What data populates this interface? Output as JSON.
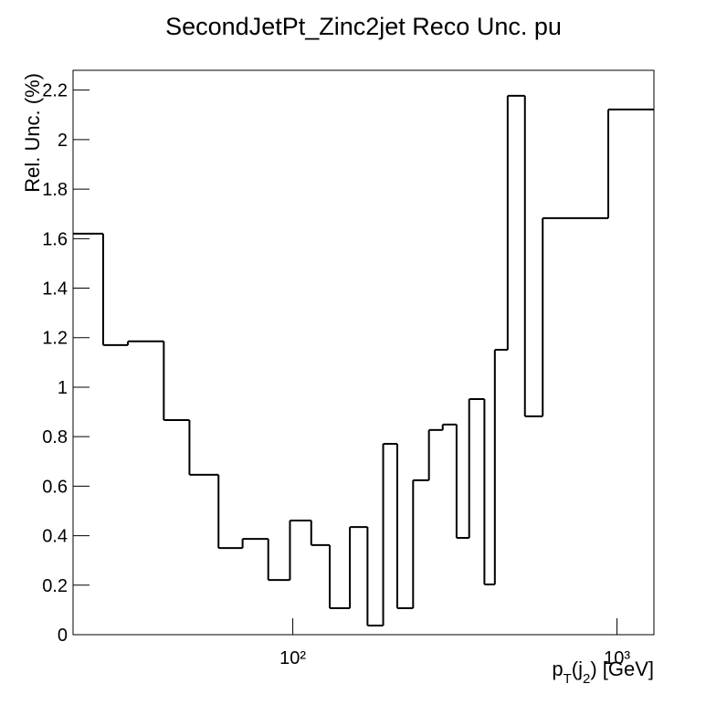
{
  "chart_data": {
    "type": "histogram",
    "title": "SecondJetPt_Zinc2jet Reco Unc. pu",
    "x_label": [
      "p",
      "T",
      "(j",
      "2",
      ") [GeV]"
    ],
    "y_label": "Rel. Unc. (%)",
    "bins": [
      21,
      26,
      31,
      40,
      48,
      59,
      70,
      84,
      98,
      114,
      130,
      150,
      170,
      190,
      210,
      235,
      263,
      290,
      320,
      350,
      390,
      420,
      460,
      520,
      590,
      940,
      1300
    ],
    "values": [
      1.62,
      1.17,
      1.185,
      0.867,
      0.646,
      0.35,
      0.387,
      0.221,
      0.461,
      0.362,
      0.107,
      0.435,
      0.037,
      0.771,
      0.107,
      0.624,
      0.827,
      0.849,
      0.391,
      0.952,
      0.203,
      1.151,
      2.177,
      0.882,
      1.683,
      2.122
    ],
    "color": "#000000",
    "xlim": [
      21,
      1300
    ],
    "xlog": true,
    "xticks": [
      {
        "value": 100,
        "label": "10²"
      },
      {
        "value": 1000,
        "label": "10³"
      }
    ],
    "ylim": [
      0,
      2.28
    ],
    "yticks": [
      0,
      0.2,
      0.4,
      0.6,
      0.8,
      1,
      1.2,
      1.4,
      1.6,
      1.8,
      2,
      2.2
    ]
  }
}
